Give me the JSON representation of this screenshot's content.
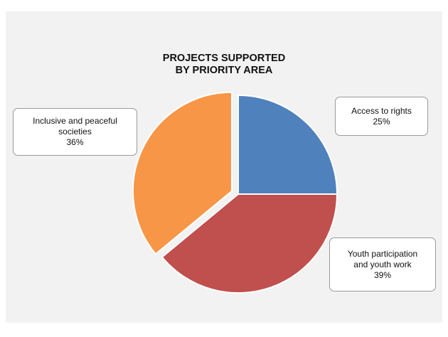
{
  "chart_data": {
    "type": "pie",
    "title": "PROJECTS SUPPORTED BY PRIORITY AREA",
    "title_lines": [
      "PROJECTS SUPPORTED",
      "BY PRIORITY AREA"
    ],
    "slices": [
      {
        "label": "Access to rights",
        "label_lines": [
          "Access to rights"
        ],
        "value": 25,
        "value_label": "25%",
        "color": "#4f81bd",
        "exploded": false
      },
      {
        "label": "Youth participation and youth work",
        "label_lines": [
          "Youth participation",
          "and youth work"
        ],
        "value": 39,
        "value_label": "39%",
        "color": "#c0504d",
        "exploded": false
      },
      {
        "label": "Inclusive and peaceful societies",
        "label_lines": [
          "Inclusive and peaceful",
          "societies"
        ],
        "value": 36,
        "value_label": "36%",
        "color": "#f79646",
        "exploded": true
      }
    ],
    "start": "12 o'clock",
    "direction": "clockwise",
    "legend": "none",
    "data_labels": "callout boxes"
  },
  "colors": {
    "panel_background": "#f2f2f2",
    "slice_border": "#ffffff"
  }
}
